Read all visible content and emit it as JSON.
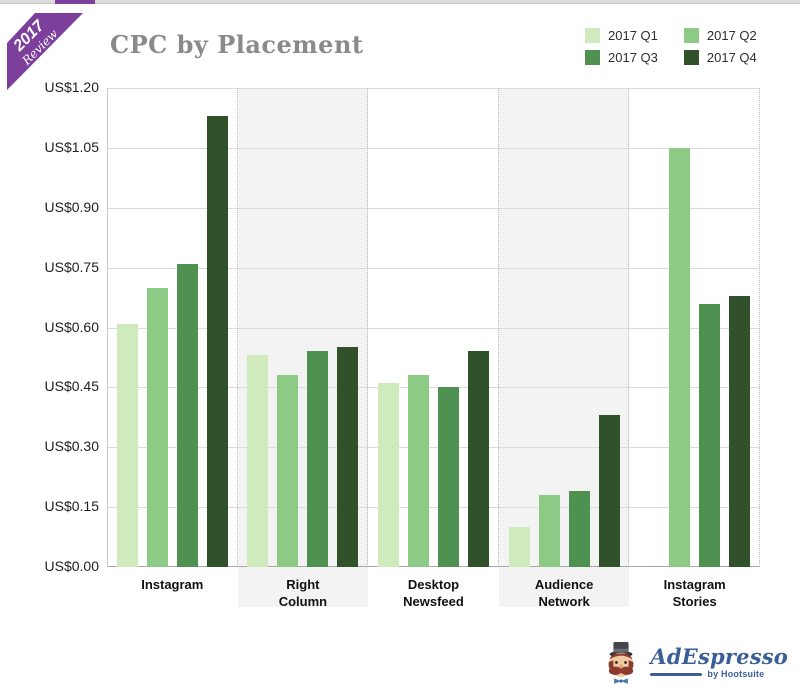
{
  "badge": {
    "year": "2017",
    "label": "Review",
    "color": "#7c3f9c"
  },
  "header": {
    "title": "CPC by Placement",
    "title_color": "#8a8a8a"
  },
  "legend": {
    "position": "top-right",
    "items": [
      {
        "label": "2017 Q1",
        "color": "#cfeabc"
      },
      {
        "label": "2017 Q2",
        "color": "#8cca85"
      },
      {
        "label": "2017 Q3",
        "color": "#4e9150"
      },
      {
        "label": "2017 Q4",
        "color": "#30512a"
      }
    ]
  },
  "chart_data": {
    "type": "bar",
    "title": "CPC by Placement",
    "categories": [
      "Instagram",
      "Right\nColumn",
      "Desktop\nNewsfeed",
      "Audience\nNetwork",
      "Instagram\nStories"
    ],
    "series": [
      {
        "name": "2017 Q1",
        "color": "#cfeabc",
        "values": [
          0.61,
          0.53,
          0.46,
          0.1,
          null
        ]
      },
      {
        "name": "2017 Q2",
        "color": "#8cca85",
        "values": [
          0.7,
          0.48,
          0.48,
          0.18,
          1.05
        ]
      },
      {
        "name": "2017 Q3",
        "color": "#4e9150",
        "values": [
          0.76,
          0.54,
          0.45,
          0.19,
          0.66
        ]
      },
      {
        "name": "2017 Q4",
        "color": "#30512a",
        "values": [
          1.13,
          0.55,
          0.54,
          0.38,
          0.68
        ]
      }
    ],
    "xlabel": "",
    "ylabel": "",
    "ylim": [
      0,
      1.2
    ],
    "y_tick_step": 0.15,
    "y_ticks": [
      "US$0.00",
      "US$0.15",
      "US$0.30",
      "US$0.45",
      "US$0.60",
      "US$0.75",
      "US$0.90",
      "US$1.05",
      "US$1.20"
    ],
    "currency_prefix": "US$",
    "grid": true,
    "legend_position": "top-right",
    "band_shading": [
      false,
      true,
      false,
      true,
      false
    ],
    "band_color": "#f3f3f3"
  },
  "footer_logo": {
    "brand": "AdEspresso",
    "byline": "by Hootsuite",
    "color": "#3a5f98"
  }
}
